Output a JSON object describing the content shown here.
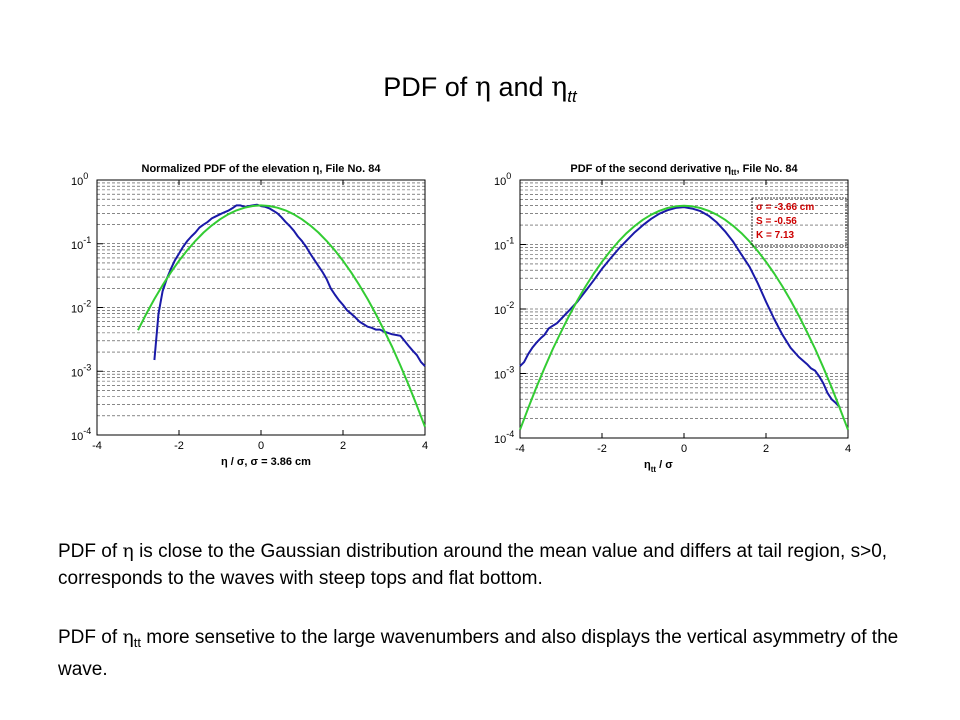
{
  "slide": {
    "title_prefix": "PDF of ",
    "title_eta": "η",
    "title_and": " and ",
    "title_eta2": "η",
    "title_sub": "tt"
  },
  "paragraphs": {
    "p1": {
      "lead": "PDF of ",
      "sym": "η",
      "rest": " is close to the Gaussian distribution around the mean value and differs at tail region, s>0, corresponds to the waves with steep tops and flat bottom."
    },
    "p2": {
      "lead": "PDF of ",
      "sym": "η",
      "sub": "tt",
      "rest": " more sensetive to the large wavenumbers and also displays the vertical asymmetry of the wave."
    }
  },
  "colors": {
    "measured": "#1a1aa8",
    "gaussian": "#33cc33",
    "stats_text": "#cc0000"
  },
  "chart_data": [
    {
      "type": "line",
      "title": "Normalized PDF of the elevation η, File No. 84",
      "xlabel": "η / σ,   σ = 3.86 cm",
      "ylabel": "",
      "xlim": [
        -4,
        4
      ],
      "ylim": [
        0.0001,
        1
      ],
      "yscale": "log",
      "grid": "y-major-and-minor",
      "xticks": [
        "-4",
        "-2",
        "0",
        "2",
        "4"
      ],
      "ytick_labels": [
        {
          "base": "10",
          "exp": "0"
        },
        {
          "base": "10",
          "exp": "-1"
        },
        {
          "base": "10",
          "exp": "-2"
        },
        {
          "base": "10",
          "exp": "-3"
        },
        {
          "base": "10",
          "exp": "-4"
        }
      ],
      "series": [
        {
          "color": "blue",
          "x": [
            -2.6,
            -2.5,
            -2.4,
            -2.3,
            -2.2,
            -2.1,
            -2.0,
            -1.9,
            -1.8,
            -1.7,
            -1.6,
            -1.5,
            -1.4,
            -1.3,
            -1.2,
            -1.1,
            -1.0,
            -0.9,
            -0.8,
            -0.7,
            -0.6,
            -0.5,
            -0.4,
            -0.3,
            -0.2,
            -0.1,
            0.0,
            0.1,
            0.2,
            0.3,
            0.4,
            0.5,
            0.6,
            0.7,
            0.8,
            0.9,
            1.0,
            1.1,
            1.2,
            1.3,
            1.4,
            1.5,
            1.6,
            1.7,
            1.8,
            1.9,
            2.0,
            2.1,
            2.2,
            2.3,
            2.4,
            2.5,
            2.6,
            2.7,
            2.8,
            2.9,
            3.0,
            3.1,
            3.2,
            3.3,
            3.4,
            3.5,
            3.6,
            3.7,
            3.8,
            3.9,
            4.0
          ],
          "y": [
            0.0015,
            0.008,
            0.018,
            0.028,
            0.04,
            0.055,
            0.07,
            0.09,
            0.11,
            0.13,
            0.15,
            0.18,
            0.2,
            0.22,
            0.25,
            0.27,
            0.29,
            0.31,
            0.33,
            0.36,
            0.4,
            0.4,
            0.38,
            0.39,
            0.4,
            0.41,
            0.39,
            0.38,
            0.36,
            0.33,
            0.3,
            0.26,
            0.22,
            0.19,
            0.16,
            0.13,
            0.11,
            0.09,
            0.07,
            0.056,
            0.045,
            0.036,
            0.028,
            0.02,
            0.016,
            0.013,
            0.011,
            0.009,
            0.008,
            0.007,
            0.006,
            0.0055,
            0.005,
            0.0048,
            0.0045,
            0.0045,
            0.0042,
            0.004,
            0.0038,
            0.0037,
            0.0036,
            0.003,
            0.0025,
            0.0021,
            0.0018,
            0.0014,
            0.0012
          ]
        },
        {
          "color": "green",
          "x": [
            -3.0,
            -2.8,
            -2.6,
            -2.4,
            -2.2,
            -2.0,
            -1.8,
            -1.6,
            -1.4,
            -1.2,
            -1.0,
            -0.8,
            -0.6,
            -0.4,
            -0.2,
            0.0,
            0.2,
            0.4,
            0.6,
            0.8,
            1.0,
            1.2,
            1.4,
            1.6,
            1.8,
            2.0,
            2.2,
            2.4,
            2.6,
            2.8,
            3.0,
            3.2,
            3.4,
            3.6,
            3.8,
            4.0
          ],
          "y": [
            0.0044,
            0.0079,
            0.0136,
            0.0224,
            0.0355,
            0.054,
            0.079,
            0.111,
            0.15,
            0.194,
            0.242,
            0.29,
            0.333,
            0.368,
            0.391,
            0.399,
            0.391,
            0.368,
            0.333,
            0.29,
            0.242,
            0.194,
            0.15,
            0.111,
            0.079,
            0.054,
            0.0355,
            0.0224,
            0.0136,
            0.0079,
            0.0044,
            0.0024,
            0.00123,
            0.00061,
            0.00029,
            0.000134
          ]
        }
      ]
    },
    {
      "type": "line",
      "title": "PDF of the second derivative η",
      "title_sub": "tt",
      "title_suffix": ", File No. 84",
      "xlabel": "η",
      "xlabel_sub": "tt",
      "xlabel_suffix": " / σ",
      "ylabel": "",
      "xlim": [
        -4,
        4
      ],
      "ylim": [
        0.0001,
        1
      ],
      "yscale": "log",
      "grid": "y-major-and-minor",
      "xticks": [
        "-4",
        "-2",
        "0",
        "2",
        "4"
      ],
      "ytick_labels": [
        {
          "base": "10",
          "exp": "0"
        },
        {
          "base": "10",
          "exp": "-1"
        },
        {
          "base": "10",
          "exp": "-2"
        },
        {
          "base": "10",
          "exp": "-3"
        },
        {
          "base": "10",
          "exp": "-4"
        }
      ],
      "stats": [
        "σ = -3.66 cm",
        "S = -0.56",
        "K = 7.13"
      ],
      "series": [
        {
          "color": "blue",
          "x": [
            -4.0,
            -3.9,
            -3.8,
            -3.7,
            -3.6,
            -3.5,
            -3.4,
            -3.3,
            -3.2,
            -3.1,
            -3.0,
            -2.8,
            -2.6,
            -2.4,
            -2.2,
            -2.0,
            -1.8,
            -1.6,
            -1.4,
            -1.2,
            -1.0,
            -0.8,
            -0.6,
            -0.4,
            -0.2,
            0.0,
            0.2,
            0.4,
            0.6,
            0.8,
            1.0,
            1.2,
            1.4,
            1.6,
            1.8,
            2.0,
            2.2,
            2.4,
            2.6,
            2.8,
            3.0,
            3.1,
            3.2,
            3.3,
            3.4,
            3.5,
            3.6,
            3.7,
            3.8
          ],
          "y": [
            0.0013,
            0.0015,
            0.002,
            0.0025,
            0.003,
            0.0035,
            0.004,
            0.005,
            0.0055,
            0.006,
            0.007,
            0.0095,
            0.013,
            0.019,
            0.028,
            0.042,
            0.06,
            0.085,
            0.115,
            0.155,
            0.2,
            0.25,
            0.3,
            0.34,
            0.37,
            0.38,
            0.36,
            0.33,
            0.28,
            0.22,
            0.16,
            0.11,
            0.07,
            0.045,
            0.025,
            0.013,
            0.007,
            0.004,
            0.0025,
            0.0018,
            0.0014,
            0.0012,
            0.0011,
            0.0009,
            0.0007,
            0.0005,
            0.0004,
            0.00035,
            0.0003
          ]
        },
        {
          "color": "green",
          "x": [
            -4.0,
            -3.8,
            -3.6,
            -3.4,
            -3.2,
            -3.0,
            -2.8,
            -2.6,
            -2.4,
            -2.2,
            -2.0,
            -1.8,
            -1.6,
            -1.4,
            -1.2,
            -1.0,
            -0.8,
            -0.6,
            -0.4,
            -0.2,
            0.0,
            0.2,
            0.4,
            0.6,
            0.8,
            1.0,
            1.2,
            1.4,
            1.6,
            1.8,
            2.0,
            2.2,
            2.4,
            2.6,
            2.8,
            3.0,
            3.2,
            3.4,
            3.6,
            3.8,
            4.0
          ],
          "y": [
            0.000134,
            0.00029,
            0.00061,
            0.00123,
            0.0024,
            0.0044,
            0.0079,
            0.0136,
            0.0224,
            0.0355,
            0.054,
            0.079,
            0.111,
            0.15,
            0.194,
            0.242,
            0.29,
            0.333,
            0.368,
            0.391,
            0.399,
            0.391,
            0.368,
            0.333,
            0.29,
            0.242,
            0.194,
            0.15,
            0.111,
            0.079,
            0.054,
            0.0355,
            0.0224,
            0.0136,
            0.0079,
            0.0044,
            0.0024,
            0.00123,
            0.00061,
            0.00029,
            0.000134
          ]
        }
      ]
    }
  ]
}
